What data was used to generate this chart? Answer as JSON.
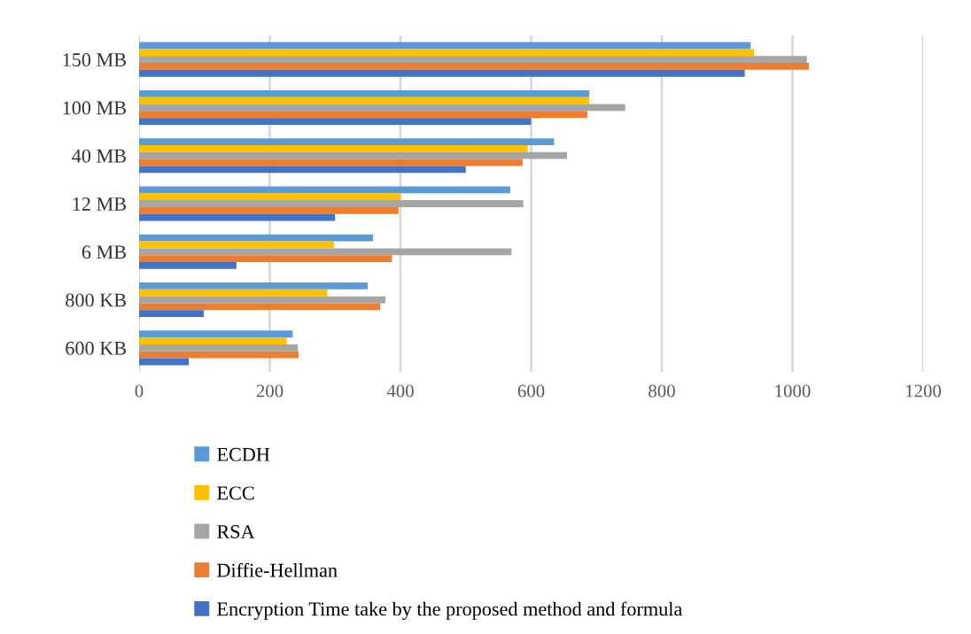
{
  "chart_data": {
    "type": "bar",
    "orientation": "horizontal",
    "categories": [
      "150 MB",
      "100 MB",
      "40 MB",
      "12 MB",
      "6 MB",
      "800 KB",
      "600 KB"
    ],
    "series": [
      {
        "name": "ECDH",
        "color": "#5b9bd5",
        "values": [
          936,
          689,
          635,
          568,
          358,
          350,
          235
        ]
      },
      {
        "name": "ECC",
        "color": "#ffc000",
        "values": [
          941,
          689,
          595,
          400,
          298,
          288,
          226
        ]
      },
      {
        "name": "RSA",
        "color": "#a5a5a5",
        "values": [
          1022,
          744,
          655,
          588,
          570,
          377,
          243
        ]
      },
      {
        "name": "Diffie-Hellman",
        "color": "#ed7d31",
        "values": [
          1025,
          686,
          587,
          397,
          387,
          369,
          244
        ]
      },
      {
        "name": "Encryption Time take by the proposed method and formula",
        "color": "#4472c4",
        "values": [
          927,
          600,
          500,
          300,
          149,
          99,
          76
        ]
      }
    ],
    "xlim": [
      0,
      1200
    ],
    "xticks": [
      0,
      200,
      400,
      600,
      800,
      1000,
      1200
    ],
    "grid": "x",
    "legend": "bottom"
  }
}
